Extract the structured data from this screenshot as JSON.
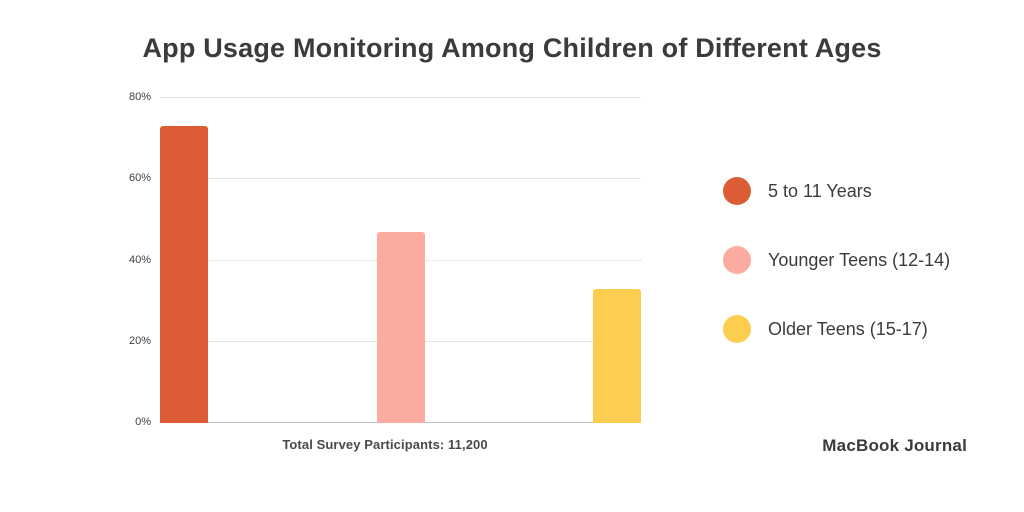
{
  "chart_data": {
    "type": "bar",
    "title": "App Usage Monitoring Among Children of Different Ages",
    "categories": [
      "5 to 11 Years",
      "Younger Teens (12-14)",
      "Older Teens (15-17)"
    ],
    "values": [
      73,
      47,
      33
    ],
    "unit": "%",
    "colors": [
      "#db5c35",
      "#fcaba0",
      "#fccd4f"
    ],
    "xlabel": "",
    "ylabel": "",
    "ylim": [
      0,
      80
    ],
    "yticks": [
      {
        "value": 0,
        "label": "0%"
      },
      {
        "value": 20,
        "label": "20%"
      },
      {
        "value": 40,
        "label": "40%"
      },
      {
        "value": 60,
        "label": "60%"
      },
      {
        "value": 80,
        "label": "80%"
      }
    ],
    "grid": "horizontal",
    "dotted_gridline_value": 40,
    "legend_position": "right"
  },
  "footer": {
    "caption": "Total Survey Participants: 11,200",
    "brand": "MacBook Journal"
  }
}
